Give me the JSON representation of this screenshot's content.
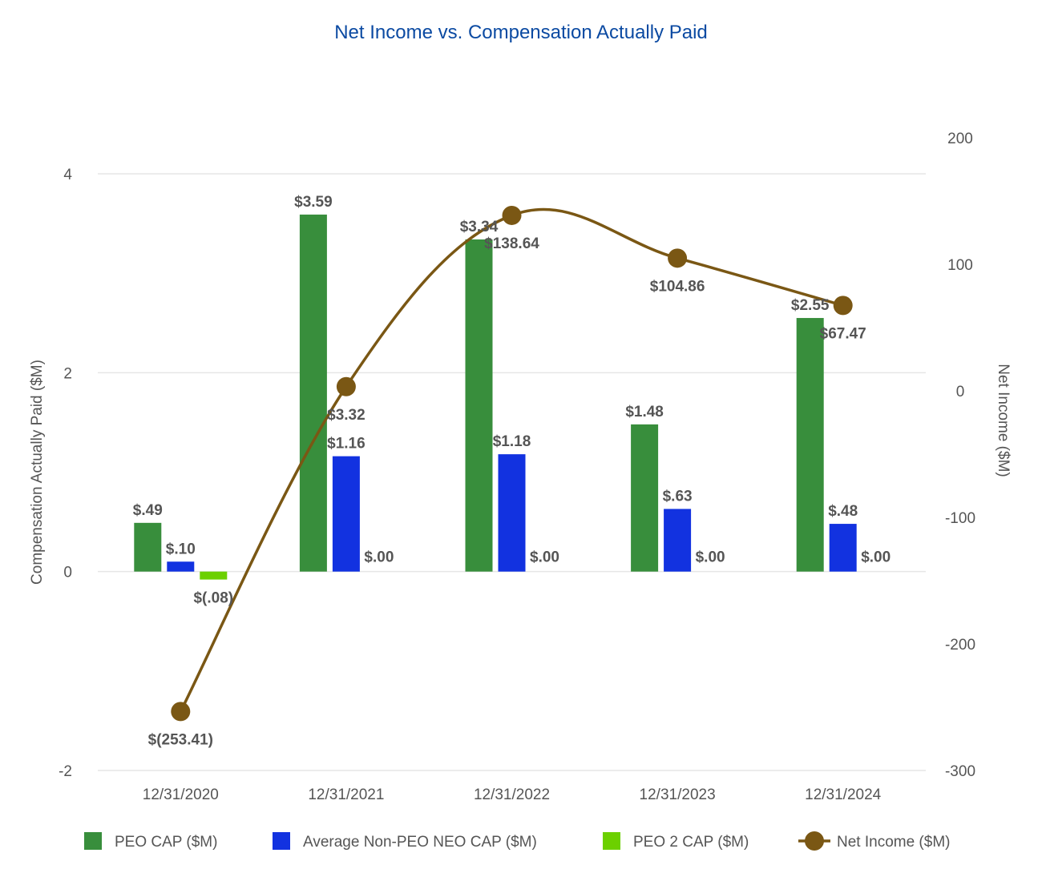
{
  "chart_data": {
    "type": "bar",
    "title": "Net Income vs. Compensation Actually Paid",
    "categories": [
      "12/31/2020",
      "12/31/2021",
      "12/31/2022",
      "12/31/2023",
      "12/31/2024"
    ],
    "ylabel": "Compensation Actually Paid ($M)",
    "y2label": "Net Income ($M)",
    "ylim": [
      -2,
      4
    ],
    "yticks": [
      -2,
      0,
      2,
      4
    ],
    "ytick_labels": [
      "-2",
      "0",
      "2",
      "4"
    ],
    "y2lim": [
      -300,
      200
    ],
    "y2ticks": [
      -300,
      -200,
      -100,
      0,
      100,
      200
    ],
    "y2tick_labels": [
      "-300",
      "-200",
      "-100",
      "0",
      "100",
      "200"
    ],
    "grid": true,
    "legend_position": "bottom",
    "series": [
      {
        "name": "PEO CAP ($M)",
        "kind": "bar",
        "axis": "left",
        "color": "#388e3c",
        "values": [
          0.49,
          3.59,
          3.34,
          1.48,
          2.55
        ],
        "labels": [
          "$.49",
          "$3.59",
          "$3.34",
          "$1.48",
          "$2.55"
        ]
      },
      {
        "name": "Average Non-PEO NEO CAP ($M)",
        "kind": "bar",
        "axis": "left",
        "color": "#1232e0",
        "values": [
          0.1,
          1.16,
          1.18,
          0.63,
          0.48
        ],
        "labels": [
          "$.10",
          "$1.16",
          "$1.18",
          "$.63",
          "$.48"
        ]
      },
      {
        "name": "PEO 2 CAP ($M)",
        "kind": "bar",
        "axis": "left",
        "color": "#6cd000",
        "values": [
          -0.08,
          0.0,
          0.0,
          0.0,
          0.0
        ],
        "labels": [
          "$(.08)",
          "$.00",
          "$.00",
          "$.00",
          "$.00"
        ]
      },
      {
        "name": "Net Income ($M)",
        "kind": "line",
        "axis": "right",
        "color": "#7a5714",
        "values": [
          -253.41,
          3.32,
          138.64,
          104.86,
          67.47
        ],
        "labels": [
          "$(253.41)",
          "$3.32",
          "$138.64",
          "$104.86",
          "$67.47"
        ]
      }
    ]
  }
}
